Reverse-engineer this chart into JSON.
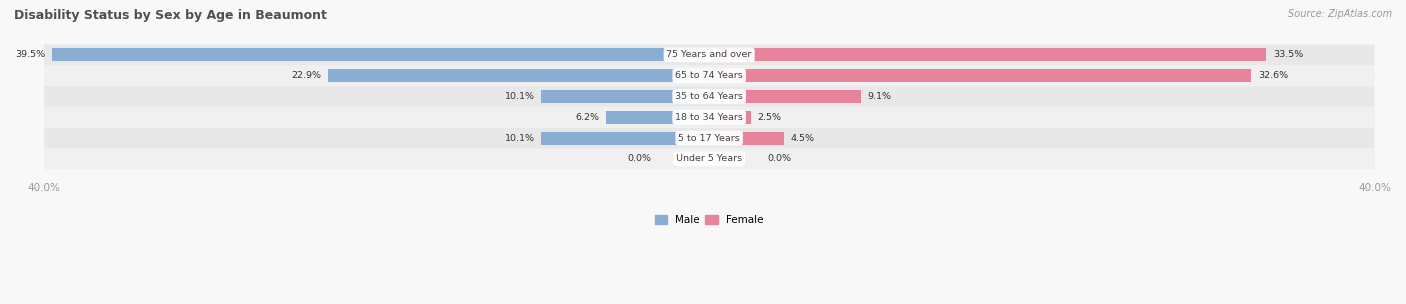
{
  "title": "Disability Status by Sex by Age in Beaumont",
  "source": "Source: ZipAtlas.com",
  "categories": [
    "Under 5 Years",
    "5 to 17 Years",
    "18 to 34 Years",
    "35 to 64 Years",
    "65 to 74 Years",
    "75 Years and over"
  ],
  "male_values": [
    0.0,
    10.1,
    6.2,
    10.1,
    22.9,
    39.5
  ],
  "female_values": [
    0.0,
    4.5,
    2.5,
    9.1,
    32.6,
    33.5
  ],
  "male_color": "#8aadd4",
  "female_color": "#e8839c",
  "male_label": "Male",
  "female_label": "Female",
  "x_max": 40.0,
  "title_color": "#505050",
  "value_label_color": "#333333",
  "category_label_color": "#444444",
  "axis_label_color": "#999999"
}
